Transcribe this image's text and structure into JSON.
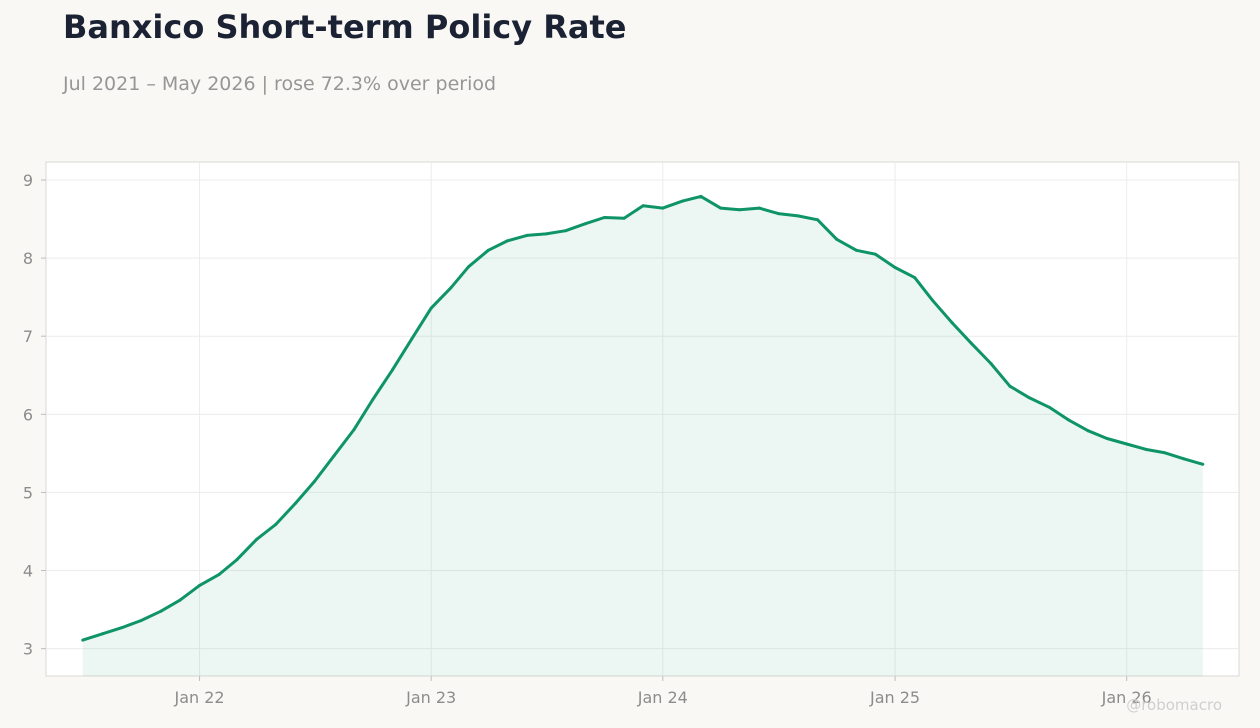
{
  "header": {
    "title": "Banxico Short-term Policy Rate",
    "subtitle": "Jul 2021 – May 2026 | rose 72.3% over period"
  },
  "watermark": "@robomacro",
  "colors": {
    "line": "#0e9467",
    "fill": "#0e9467",
    "background": "#f9f8f5",
    "plot_background": "#ffffff",
    "grid": "#ececec",
    "title": "#1b2233",
    "subtitle": "#969696"
  },
  "chart_data": {
    "type": "area",
    "title": "Banxico Short-term Policy Rate",
    "subtitle": "Jul 2021 – May 2026 | rose 72.3% over period",
    "xlabel": "",
    "ylabel": "",
    "grid": true,
    "xlim": [
      "2021-05-04",
      "2026-06-27"
    ],
    "ylim": [
      2.65,
      9.23
    ],
    "x_ticks": [
      {
        "date": "2022-01-01",
        "label": "Jan 22"
      },
      {
        "date": "2023-01-01",
        "label": "Jan 23"
      },
      {
        "date": "2024-01-01",
        "label": "Jan 24"
      },
      {
        "date": "2025-01-01",
        "label": "Jan 25"
      },
      {
        "date": "2026-01-01",
        "label": "Jan 26"
      }
    ],
    "y_ticks": [
      3,
      4,
      5,
      6,
      7,
      8,
      9
    ],
    "series": [
      {
        "x": [
          "2021-07-01",
          "2021-08-01",
          "2021-09-01",
          "2021-10-01",
          "2021-11-01",
          "2021-12-01",
          "2022-01-01",
          "2022-02-01",
          "2022-03-01",
          "2022-04-01",
          "2022-05-01",
          "2022-06-01",
          "2022-07-01",
          "2022-08-01",
          "2022-09-01",
          "2022-10-01",
          "2022-11-01",
          "2022-12-01",
          "2023-01-01",
          "2023-02-01",
          "2023-03-01",
          "2023-04-01",
          "2023-05-01",
          "2023-06-01",
          "2023-07-01",
          "2023-08-01",
          "2023-09-01",
          "2023-10-01",
          "2023-11-01",
          "2023-12-01",
          "2024-01-01",
          "2024-02-01",
          "2024-03-01",
          "2024-04-01",
          "2024-05-01",
          "2024-06-01",
          "2024-07-01",
          "2024-08-01",
          "2024-09-01",
          "2024-10-01",
          "2024-11-01",
          "2024-12-01",
          "2025-01-01",
          "2025-02-01",
          "2025-03-01",
          "2025-04-01",
          "2025-05-01",
          "2025-06-01",
          "2025-07-01",
          "2025-08-01",
          "2025-09-01",
          "2025-10-01",
          "2025-11-01",
          "2025-12-01",
          "2026-01-01",
          "2026-02-01",
          "2026-03-01",
          "2026-04-01",
          "2026-05-01"
        ],
        "values": [
          3.11,
          3.19,
          3.27,
          3.36,
          3.48,
          3.62,
          3.81,
          3.95,
          4.14,
          4.4,
          4.59,
          4.86,
          5.14,
          5.47,
          5.8,
          6.19,
          6.57,
          6.96,
          7.36,
          7.62,
          7.89,
          8.1,
          8.22,
          8.29,
          8.31,
          8.35,
          8.44,
          8.52,
          8.51,
          8.67,
          8.64,
          8.73,
          8.79,
          8.64,
          8.62,
          8.64,
          8.57,
          8.54,
          8.49,
          8.24,
          8.1,
          8.05,
          7.88,
          7.75,
          7.46,
          7.17,
          6.91,
          6.65,
          6.36,
          6.21,
          6.09,
          5.93,
          5.79,
          5.69,
          5.62,
          5.55,
          5.51,
          5.43,
          5.36
        ]
      }
    ]
  }
}
